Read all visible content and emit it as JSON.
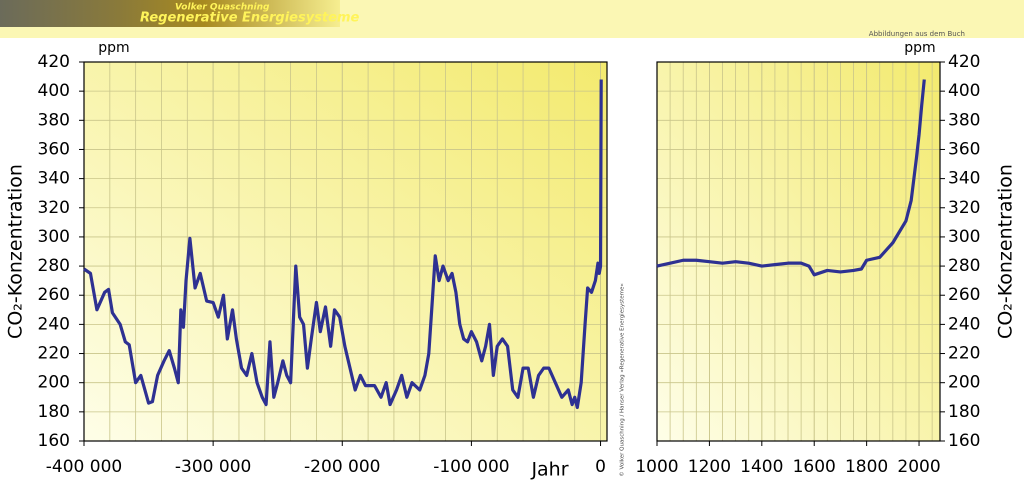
{
  "header": {
    "author": "Volker Quaschning",
    "book": "Regenerative Energiesysteme",
    "note": "Abbildungen aus dem Buch"
  },
  "copyright": "© Volker Quaschning / Hanser Verlag »Regenerative Energiesysteme«",
  "chart_data": [
    {
      "type": "line",
      "x_label": "Jahr",
      "y_label": "CO₂-Konzentration",
      "unit": "ppm",
      "xlim": [
        -400000,
        5000
      ],
      "ylim": [
        160,
        420
      ],
      "xticks": [
        {
          "value": -400000,
          "label": "-400 000"
        },
        {
          "value": -300000,
          "label": "-300 000"
        },
        {
          "value": -200000,
          "label": "-200 000"
        },
        {
          "value": -100000,
          "label": "-100 000"
        },
        0
      ],
      "yticks": [
        160,
        180,
        200,
        220,
        240,
        260,
        280,
        300,
        320,
        340,
        360,
        380,
        400,
        420
      ],
      "grid": true,
      "y_axis_side": "left",
      "x": [
        -400000,
        -395000,
        -390000,
        -384000,
        -381000,
        -378000,
        -372000,
        -368000,
        -365000,
        -360000,
        -356000,
        -350000,
        -347000,
        -343000,
        -338000,
        -334000,
        -330000,
        -327000,
        -325000,
        -323000,
        -321000,
        -318000,
        -314000,
        -310000,
        -305000,
        -300000,
        -296000,
        -292000,
        -289000,
        -285000,
        -282000,
        -278000,
        -274000,
        -270000,
        -266000,
        -262000,
        -259000,
        -256000,
        -253000,
        -250000,
        -246000,
        -243000,
        -240000,
        -238000,
        -236000,
        -233000,
        -230000,
        -227000,
        -224000,
        -220000,
        -217000,
        -213000,
        -209000,
        -206000,
        -202000,
        -198000,
        -194000,
        -190000,
        -186000,
        -182000,
        -175000,
        -170000,
        -166000,
        -163000,
        -158000,
        -154000,
        -150000,
        -146000,
        -140000,
        -136000,
        -133000,
        -130000,
        -128000,
        -125000,
        -122000,
        -118000,
        -115000,
        -112000,
        -109000,
        -106000,
        -103000,
        -100000,
        -96000,
        -92000,
        -89000,
        -86000,
        -83000,
        -80000,
        -76000,
        -72000,
        -68000,
        -64000,
        -60000,
        -56000,
        -52000,
        -48000,
        -44000,
        -40000,
        -35000,
        -30000,
        -25000,
        -22000,
        -20000,
        -18000,
        -15000,
        -12000,
        -10000,
        -7000,
        -4000,
        -2000,
        -1000,
        0,
        500
      ],
      "series": [
        {
          "name": "CO₂",
          "color": "#2e3192",
          "values": [
            278,
            275,
            250,
            262,
            264,
            248,
            240,
            228,
            226,
            200,
            205,
            186,
            187,
            205,
            215,
            222,
            210,
            200,
            250,
            238,
            270,
            299,
            265,
            275,
            256,
            255,
            245,
            260,
            230,
            250,
            230,
            210,
            205,
            220,
            200,
            190,
            185,
            228,
            190,
            200,
            215,
            205,
            200,
            240,
            280,
            245,
            240,
            210,
            230,
            255,
            235,
            252,
            225,
            250,
            245,
            225,
            210,
            195,
            205,
            198,
            198,
            190,
            200,
            185,
            195,
            205,
            190,
            200,
            195,
            205,
            220,
            260,
            287,
            270,
            280,
            270,
            275,
            262,
            240,
            230,
            228,
            235,
            228,
            215,
            225,
            240,
            205,
            225,
            230,
            225,
            195,
            190,
            210,
            210,
            190,
            205,
            210,
            210,
            200,
            190,
            195,
            185,
            190,
            183,
            200,
            240,
            265,
            262,
            270,
            282,
            275,
            280,
            408
          ]
        }
      ]
    },
    {
      "type": "line",
      "y_label": "CO₂-Konzentration",
      "unit": "ppm",
      "xlim": [
        1000,
        2080
      ],
      "ylim": [
        160,
        420
      ],
      "xticks": [
        1000,
        1200,
        1400,
        1600,
        1800,
        2000
      ],
      "yticks": [
        160,
        180,
        200,
        220,
        240,
        260,
        280,
        300,
        320,
        340,
        360,
        380,
        400,
        420
      ],
      "grid": true,
      "y_axis_side": "right",
      "x": [
        1000,
        1050,
        1100,
        1150,
        1200,
        1250,
        1300,
        1350,
        1400,
        1450,
        1500,
        1550,
        1580,
        1600,
        1650,
        1700,
        1750,
        1780,
        1800,
        1850,
        1900,
        1950,
        1970,
        1990,
        2000,
        2010,
        2020
      ],
      "series": [
        {
          "name": "CO₂",
          "color": "#2e3192",
          "values": [
            280,
            282,
            284,
            284,
            283,
            282,
            283,
            282,
            280,
            281,
            282,
            282,
            280,
            274,
            277,
            276,
            277,
            278,
            284,
            286,
            296,
            311,
            325,
            354,
            370,
            390,
            408
          ]
        }
      ]
    }
  ]
}
